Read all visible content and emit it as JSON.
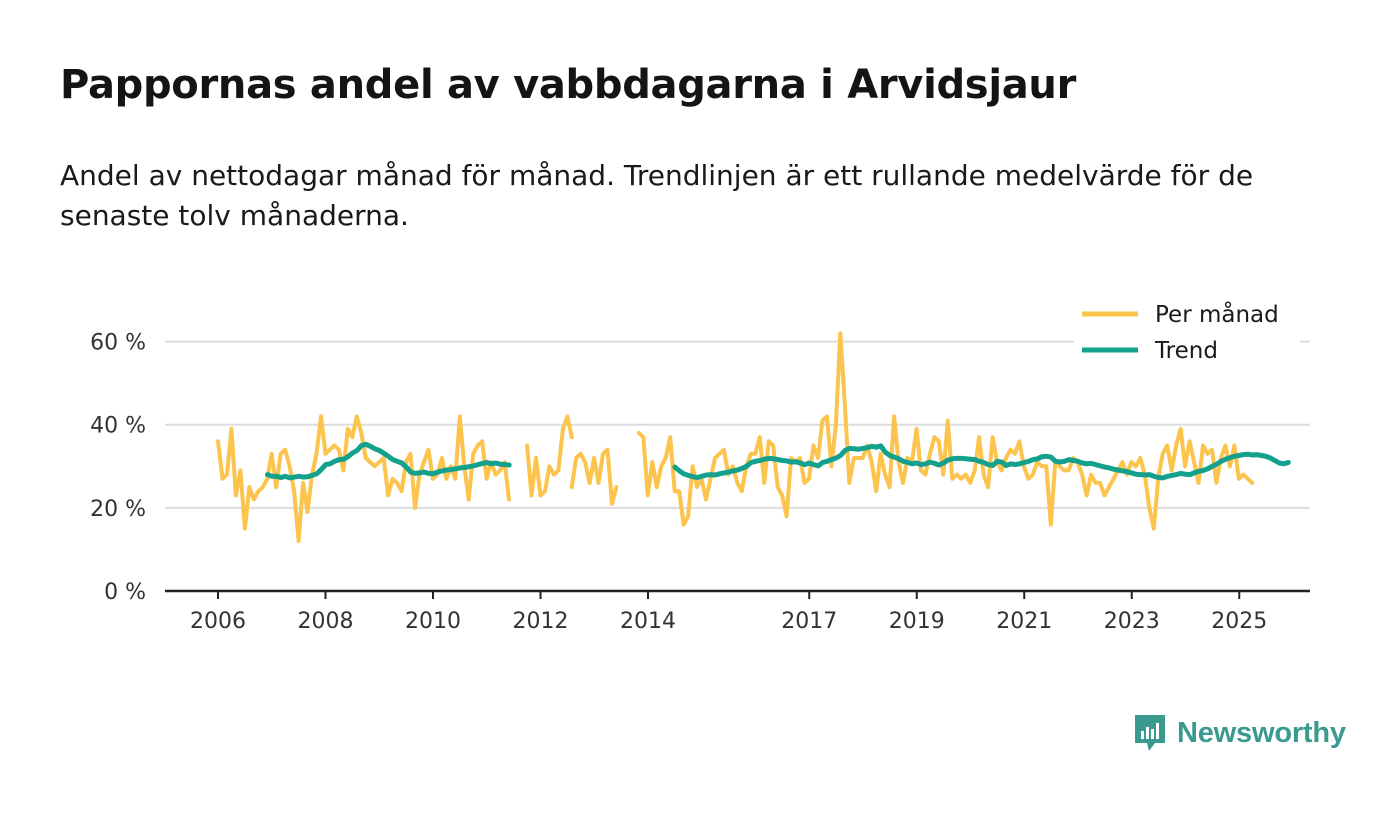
{
  "header": {
    "title": "Pappornas andel av vabbdagarna i Arvidsjaur",
    "subtitle": "Andel av nettodagar månad för månad. Trendlinjen är ett rullande medelvärde för de senaste tolv månaderna."
  },
  "brand": {
    "name": "Newsworthy",
    "color": "#3a9a8f"
  },
  "colors": {
    "monthly": "#fcc34d",
    "trend": "#13a08c",
    "axis": "#222222",
    "grid": "#dddddd"
  },
  "chart_data": {
    "type": "line",
    "title": "Pappornas andel av vabbdagarna i Arvidsjaur",
    "xlabel": "",
    "ylabel": "",
    "ylim": [
      0,
      70
    ],
    "xlim": [
      2005.1,
      2026.3
    ],
    "grid": true,
    "legend_position": "top-right",
    "y_ticks": [
      {
        "value": 0,
        "label": "0 %"
      },
      {
        "value": 20,
        "label": "20 %"
      },
      {
        "value": 40,
        "label": "40 %"
      },
      {
        "value": 60,
        "label": "60 %"
      }
    ],
    "x_ticks": [
      {
        "value": 2006,
        "label": "2006"
      },
      {
        "value": 2008,
        "label": "2008"
      },
      {
        "value": 2010,
        "label": "2010"
      },
      {
        "value": 2012,
        "label": "2012"
      },
      {
        "value": 2014,
        "label": "2014"
      },
      {
        "value": 2017,
        "label": "2017"
      },
      {
        "value": 2019,
        "label": "2019"
      },
      {
        "value": 2021,
        "label": "2021"
      },
      {
        "value": 2023,
        "label": "2023"
      },
      {
        "value": 2025,
        "label": "2025"
      }
    ],
    "series": [
      {
        "name": "Per månad",
        "key": "monthly",
        "segments": [
          {
            "start": 2006.0,
            "step": 0.0833,
            "values": [
              36,
              27,
              28,
              39,
              23,
              29,
              15,
              25,
              22,
              24,
              25,
              27,
              33,
              25,
              33,
              34,
              30,
              24,
              12,
              26,
              19,
              28,
              33,
              42,
              33,
              34,
              35,
              34,
              29,
              39,
              37,
              42,
              38,
              32,
              31,
              30,
              31,
              32,
              23,
              27,
              26,
              24,
              31,
              33,
              20,
              28,
              31,
              34,
              27,
              28,
              32,
              27,
              30,
              27,
              42,
              30,
              22,
              33,
              35,
              36,
              27,
              31,
              28,
              29,
              31,
              22
            ]
          },
          {
            "start": 2011.75,
            "step": 0.0833,
            "values": [
              35,
              23,
              32,
              23,
              24,
              30,
              28,
              29,
              39,
              42,
              37
            ]
          },
          {
            "start": 2012.58,
            "step": 0.0833,
            "values": [
              25,
              32,
              33,
              31,
              26,
              32,
              26,
              33,
              34,
              21,
              25
            ]
          },
          {
            "start": 2013.83,
            "step": 0.0833,
            "values": [
              38,
              37,
              23,
              31,
              25,
              30,
              32,
              37,
              24,
              24,
              16,
              18,
              30,
              25,
              27,
              22,
              27,
              32,
              33,
              34,
              28,
              30,
              26,
              24,
              30,
              33,
              33,
              37,
              26,
              36,
              35,
              25,
              23,
              18,
              32,
              31,
              32,
              26,
              27,
              35,
              32,
              41,
              42,
              30,
              40,
              62,
              45,
              26,
              32,
              32,
              32,
              35,
              31,
              24,
              33,
              28,
              25,
              42,
              31,
              26,
              32,
              31,
              39,
              29,
              28,
              33,
              37,
              36,
              28,
              41,
              27,
              28,
              27,
              28,
              26,
              29,
              37,
              28,
              25,
              37,
              31,
              29,
              32,
              34,
              33,
              36,
              30,
              27,
              28,
              31,
              30,
              30,
              16,
              31,
              30,
              29,
              29,
              32,
              31,
              28,
              23,
              28,
              26,
              26,
              23,
              25,
              27,
              29,
              31,
              28,
              31,
              30,
              32,
              28,
              20,
              15,
              27,
              33,
              35,
              29,
              35,
              39,
              30,
              36,
              31,
              26,
              35,
              33,
              34,
              26,
              32,
              35,
              30,
              35,
              27,
              28,
              27,
              26
            ]
          }
        ]
      },
      {
        "name": "Trend",
        "key": "trend",
        "segments": [
          {
            "start": 2006.92,
            "step": 0.0833,
            "values": [
              28,
              27.6,
              27.6,
              27.3,
              27.6,
              27.2,
              27.4,
              27.6,
              27.4,
              27.5,
              27.8,
              28.2,
              29.2,
              30.4,
              30.6,
              31.2,
              31.6,
              31.7,
              32.3,
              33.2,
              33.8,
              35,
              35.3,
              34.8,
              34.2,
              33.8,
              33.1,
              32.4,
              31.6,
              31.2,
              30.8,
              29.8,
              28.6,
              28.3,
              28.4,
              28.6,
              28.3,
              28.2,
              28.6,
              28.9,
              29.1,
              29.2,
              29.4,
              29.6,
              29.7,
              29.9,
              30.1,
              30.4,
              30.7,
              30.9,
              30.6,
              30.8,
              30.5,
              30.4,
              30.3
            ]
          },
          {
            "start": 2014.5,
            "step": 0.0833,
            "values": [
              29.8,
              28.9,
              28.2,
              27.8,
              27.5,
              27.3,
              27.6,
              27.9,
              28,
              27.9,
              28.2,
              28.4,
              28.6,
              28.9,
              29.1,
              29.5,
              30,
              30.9,
              31.2,
              31.4,
              31.7,
              31.9,
              31.8,
              31.6,
              31.4,
              31.3,
              31,
              31.1,
              30.8,
              30.4,
              30.8,
              30.4,
              30.1,
              30.9,
              31.2,
              31.6,
              32,
              32.6,
              33.8,
              34.3,
              34.2,
              34.1,
              34.3,
              34.5,
              34.8,
              34.6,
              34.9,
              33.4,
              32.6,
              32.2,
              31.8,
              31.2,
              30.9,
              30.6,
              30.8,
              30.4,
              30.6,
              31,
              30.7,
              30.3,
              30.8,
              31.5,
              31.8,
              31.9,
              31.9,
              31.8,
              31.7,
              31.6,
              31.2,
              30.9,
              30.4,
              30.2,
              31.2,
              31,
              30.2,
              30.6,
              30.4,
              30.6,
              30.9,
              31.2,
              31.6,
              31.8,
              32.3,
              32.4,
              32.2,
              31.2,
              31,
              31.2,
              31.6,
              31.4,
              31.2,
              30.8,
              30.6,
              30.7,
              30.4,
              30.1,
              29.8,
              29.6,
              29.3,
              29.1,
              28.9,
              28.7,
              28.4,
              28.1,
              28,
              27.9,
              28,
              27.6,
              27.3,
              27.2,
              27.6,
              27.8,
              28,
              28.3,
              28.1,
              28,
              28.4,
              28.8,
              29,
              29.4,
              30,
              30.5,
              31.2,
              31.7,
              32.1,
              32.4,
              32.6,
              32.8,
              32.9,
              32.7,
              32.8,
              32.6,
              32.4,
              32,
              31.4,
              30.8,
              30.6,
              30.9
            ]
          }
        ]
      }
    ]
  }
}
